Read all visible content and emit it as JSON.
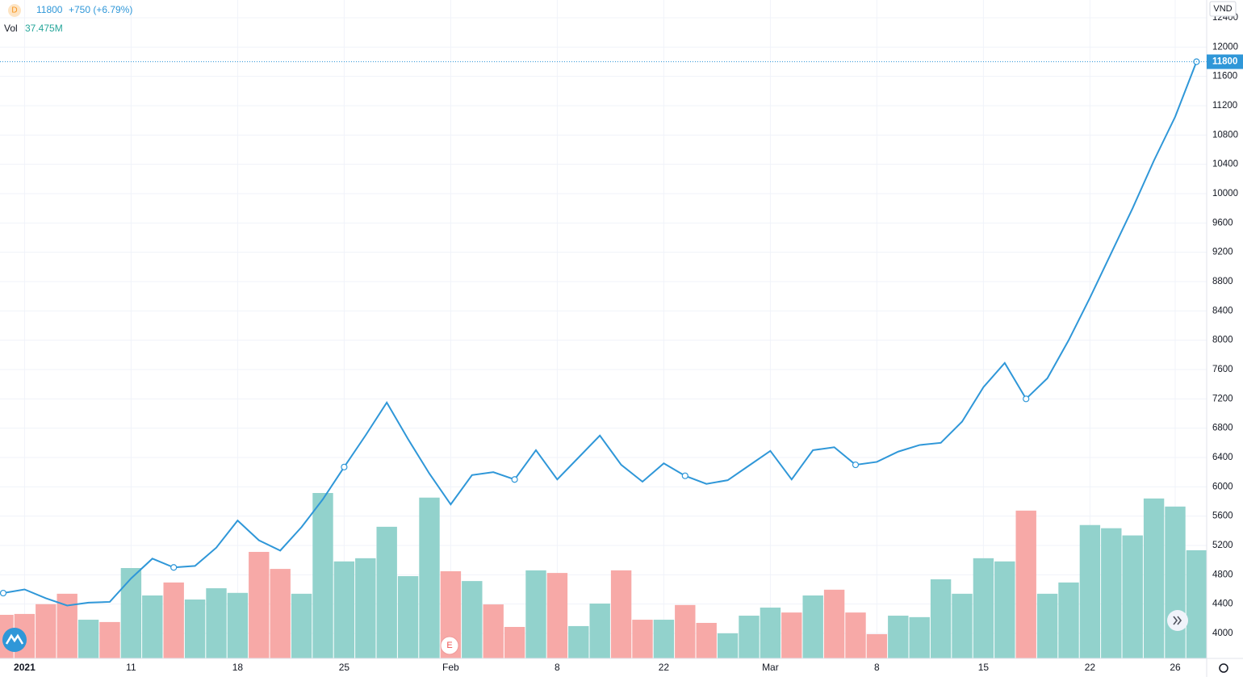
{
  "chart_data": {
    "type": "line",
    "interval": "D",
    "last_value": 11800,
    "change_label": "+750 (+6.79%)",
    "currency": "VND",
    "event_marker": "E",
    "color": "#2f97d8",
    "grid": true,
    "categories": [
      null,
      "2021",
      null,
      null,
      null,
      null,
      "11",
      null,
      null,
      null,
      null,
      "18",
      null,
      null,
      null,
      null,
      "25",
      null,
      null,
      null,
      null,
      "Feb",
      null,
      null,
      null,
      null,
      "8",
      null,
      null,
      null,
      null,
      "22",
      null,
      null,
      null,
      null,
      "Mar",
      null,
      null,
      null,
      null,
      "8",
      null,
      null,
      null,
      null,
      "15",
      null,
      null,
      null,
      null,
      "22",
      null,
      null,
      null,
      "26",
      null
    ],
    "values": [
      4550,
      4600,
      4480,
      4380,
      4420,
      4430,
      4750,
      5020,
      4900,
      4920,
      5170,
      5540,
      5270,
      5130,
      5450,
      5830,
      6270,
      6700,
      7150,
      6650,
      6180,
      5760,
      6160,
      6200,
      6100,
      6500,
      6100,
      6400,
      6700,
      6300,
      6070,
      6320,
      6150,
      6040,
      6090,
      6290,
      6490,
      6100,
      6500,
      6540,
      6300,
      6340,
      6480,
      6570,
      6600,
      6890,
      7360,
      7690,
      7200,
      7480,
      8000,
      8580,
      9190,
      9800,
      10450,
      11050,
      11800
    ],
    "ylim": [
      4000,
      12400
    ],
    "yticks": [
      4000,
      4400,
      4800,
      5200,
      5600,
      6000,
      6400,
      6800,
      7200,
      7600,
      8000,
      8400,
      8800,
      9200,
      9600,
      10000,
      10400,
      10800,
      11200,
      11600,
      12000,
      12400
    ],
    "volume": {
      "name": "Vol",
      "latest_label": "37.475M",
      "values": [
        15.1,
        15.4,
        18.8,
        22.4,
        13.4,
        12.6,
        31.3,
        21.8,
        26.3,
        20.4,
        24.3,
        22.7,
        36.9,
        31.0,
        22.4,
        57.3,
        33.6,
        34.7,
        45.6,
        28.5,
        55.7,
        30.2,
        26.8,
        18.7,
        10.9,
        30.5,
        29.6,
        11.2,
        19.0,
        30.5,
        13.4,
        13.4,
        18.5,
        12.3,
        8.7,
        14.8,
        17.6,
        15.9,
        21.8,
        23.8,
        15.9,
        8.4,
        14.8,
        14.3,
        27.4,
        22.4,
        34.7,
        33.6,
        51.2,
        22.4,
        26.3,
        46.2,
        45.1,
        42.6,
        55.4,
        52.6,
        37.475
      ],
      "colors": [
        "#f7a9a7",
        "#f7a9a7",
        "#f7a9a7",
        "#f7a9a7",
        "#92d2cc",
        "#f7a9a7",
        "#92d2cc",
        "#92d2cc",
        "#f7a9a7",
        "#92d2cc",
        "#92d2cc",
        "#92d2cc",
        "#f7a9a7",
        "#f7a9a7",
        "#92d2cc",
        "#92d2cc",
        "#92d2cc",
        "#92d2cc",
        "#92d2cc",
        "#92d2cc",
        "#92d2cc",
        "#f7a9a7",
        "#92d2cc",
        "#f7a9a7",
        "#f7a9a7",
        "#92d2cc",
        "#f7a9a7",
        "#92d2cc",
        "#92d2cc",
        "#f7a9a7",
        "#f7a9a7",
        "#92d2cc",
        "#f7a9a7",
        "#f7a9a7",
        "#92d2cc",
        "#92d2cc",
        "#92d2cc",
        "#f7a9a7",
        "#92d2cc",
        "#f7a9a7",
        "#f7a9a7",
        "#f7a9a7",
        "#92d2cc",
        "#92d2cc",
        "#92d2cc",
        "#92d2cc",
        "#92d2cc",
        "#92d2cc",
        "#f7a9a7",
        "#92d2cc",
        "#92d2cc",
        "#92d2cc",
        "#92d2cc",
        "#92d2cc",
        "#92d2cc",
        "#92d2cc",
        "#92d2cc"
      ]
    }
  }
}
